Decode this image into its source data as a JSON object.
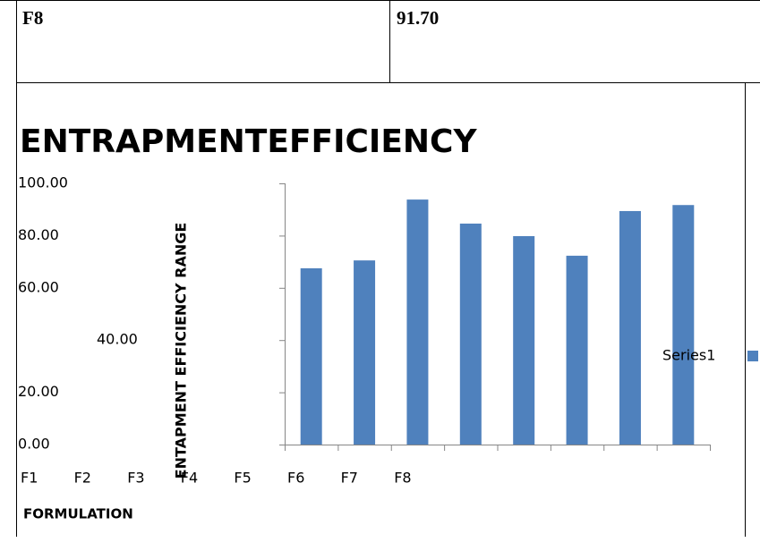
{
  "table": {
    "rows": [
      [
        "F8",
        "91.70"
      ]
    ]
  },
  "chart_data": {
    "type": "bar",
    "title": "ENTRAPMENTEFFICIENCY",
    "y_label": "ENTAPMENT EFFICIENCY RANGE",
    "x_label": "FORMULATION",
    "categories": [
      "F1",
      "F2",
      "F3",
      "F4",
      "F5",
      "F6",
      "F7",
      "F8"
    ],
    "series": [
      {
        "name": "Series1",
        "color": "#4f81bd",
        "values": [
          67.5,
          70.5,
          93.8,
          84.6,
          79.8,
          72.3,
          89.4,
          91.7
        ]
      }
    ],
    "ylim": [
      0,
      100
    ],
    "yticks": [
      {
        "value": 0,
        "label": "0.00"
      },
      {
        "value": 20,
        "label": "20.00"
      },
      {
        "value": 40,
        "label": "40.00"
      },
      {
        "value": 60,
        "label": "60.00"
      },
      {
        "value": 80,
        "label": "80.00"
      },
      {
        "value": 100,
        "label": "100.00"
      }
    ],
    "legend": "right"
  }
}
